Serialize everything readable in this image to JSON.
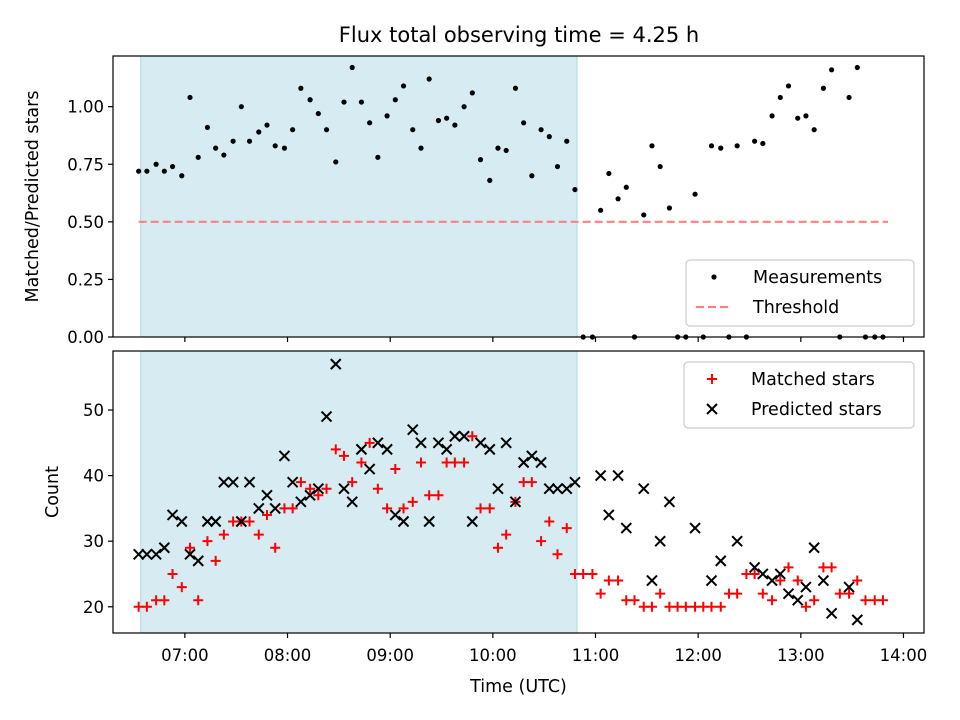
{
  "figure": {
    "title": "Flux total observing time = 4.25 h"
  },
  "colors": {
    "band": "#add8e6",
    "threshold": "#ff8080",
    "measurement": "#000000",
    "matched": "#ff0000",
    "predicted": "#000000"
  },
  "chart_data": [
    {
      "type": "scatter",
      "title": "Flux total observing time = 4.25 h",
      "xlabel": "",
      "ylabel": "Matched/Predicted stars",
      "xlim_hours": [
        6.3,
        14.2
      ],
      "ylim": [
        0.0,
        1.22
      ],
      "yticks": [
        "0.00",
        "0.25",
        "0.50",
        "0.75",
        "1.00"
      ],
      "ytick_values": [
        0.0,
        0.25,
        0.5,
        0.75,
        1.0
      ],
      "shaded_band_hours": [
        6.57,
        10.82
      ],
      "legend_placement": "lower-right",
      "grid": false,
      "series": [
        {
          "name": "Measurements",
          "marker": "dot",
          "x_hours": [
            6.55,
            6.63,
            6.72,
            6.8,
            6.88,
            6.97,
            7.05,
            7.13,
            7.22,
            7.3,
            7.38,
            7.47,
            7.55,
            7.63,
            7.72,
            7.8,
            7.88,
            7.97,
            8.05,
            8.13,
            8.22,
            8.3,
            8.38,
            8.47,
            8.55,
            8.63,
            8.72,
            8.8,
            8.88,
            8.97,
            9.05,
            9.13,
            9.22,
            9.3,
            9.38,
            9.47,
            9.55,
            9.63,
            9.72,
            9.8,
            9.88,
            9.97,
            10.05,
            10.13,
            10.22,
            10.3,
            10.38,
            10.47,
            10.55,
            10.63,
            10.72,
            10.8,
            10.88,
            10.97,
            11.05,
            11.13,
            11.22,
            11.3,
            11.38,
            11.47,
            11.55,
            11.63,
            11.72,
            11.8,
            11.88,
            11.97,
            12.05,
            12.13,
            12.22,
            12.3,
            12.38,
            12.47,
            12.55,
            12.63,
            12.72,
            12.8,
            12.88,
            12.97,
            13.05,
            13.13,
            13.22,
            13.3,
            13.38,
            13.47,
            13.55,
            13.63,
            13.72,
            13.8
          ],
          "y": [
            0.72,
            0.72,
            0.75,
            0.72,
            0.74,
            0.7,
            1.04,
            0.78,
            0.91,
            0.82,
            0.79,
            0.85,
            1.0,
            0.85,
            0.89,
            0.92,
            0.83,
            0.82,
            0.9,
            1.08,
            1.03,
            0.97,
            0.9,
            0.76,
            1.02,
            1.17,
            1.02,
            0.93,
            0.78,
            0.96,
            1.03,
            1.09,
            0.9,
            0.82,
            1.12,
            0.94,
            0.95,
            0.92,
            1.0,
            1.06,
            0.77,
            0.68,
            0.82,
            0.81,
            1.08,
            0.93,
            0.7,
            0.9,
            0.87,
            0.74,
            0.85,
            0.64,
            0.0,
            0.0,
            0.55,
            0.71,
            0.6,
            0.65,
            0.0,
            0.53,
            0.83,
            0.74,
            0.56,
            0.0,
            0.0,
            0.62,
            0.0,
            0.83,
            0.82,
            0.0,
            0.83,
            0.0,
            0.85,
            0.84,
            0.96,
            1.04,
            1.09,
            0.95,
            0.96,
            0.9,
            1.08,
            1.16,
            0.0,
            1.04,
            1.17,
            0.0,
            0.0,
            0.0
          ]
        },
        {
          "name": "Threshold",
          "style": "dashed",
          "x_hours": [
            6.55,
            13.85
          ],
          "y": [
            0.5,
            0.5
          ]
        }
      ]
    },
    {
      "type": "scatter",
      "xlabel": "Time (UTC)",
      "ylabel": "Count",
      "xlim_hours": [
        6.3,
        14.2
      ],
      "ylim": [
        16,
        59
      ],
      "yticks": [
        "20",
        "30",
        "40",
        "50"
      ],
      "ytick_values": [
        20,
        30,
        40,
        50
      ],
      "xticks": [
        "07:00",
        "08:00",
        "09:00",
        "10:00",
        "11:00",
        "12:00",
        "13:00",
        "14:00"
      ],
      "xtick_hours": [
        7,
        8,
        9,
        10,
        11,
        12,
        13,
        14
      ],
      "shaded_band_hours": [
        6.57,
        10.82
      ],
      "legend_placement": "top-right",
      "grid": false,
      "series": [
        {
          "name": "Matched stars",
          "marker": "plus",
          "x_hours": [
            6.55,
            6.63,
            6.72,
            6.8,
            6.88,
            6.97,
            7.05,
            7.13,
            7.22,
            7.3,
            7.38,
            7.47,
            7.55,
            7.63,
            7.72,
            7.8,
            7.88,
            7.97,
            8.05,
            8.13,
            8.22,
            8.3,
            8.38,
            8.47,
            8.55,
            8.63,
            8.72,
            8.8,
            8.88,
            8.97,
            9.05,
            9.13,
            9.22,
            9.3,
            9.38,
            9.47,
            9.55,
            9.63,
            9.72,
            9.8,
            9.88,
            9.97,
            10.05,
            10.13,
            10.22,
            10.3,
            10.38,
            10.47,
            10.55,
            10.63,
            10.72,
            10.8,
            10.88,
            10.97,
            11.05,
            11.13,
            11.22,
            11.3,
            11.38,
            11.47,
            11.55,
            11.63,
            11.72,
            11.8,
            11.88,
            11.97,
            12.05,
            12.13,
            12.22,
            12.3,
            12.38,
            12.47,
            12.55,
            12.63,
            12.72,
            12.8,
            12.88,
            12.97,
            13.05,
            13.13,
            13.22,
            13.3,
            13.38,
            13.47,
            13.55,
            13.63,
            13.72,
            13.8
          ],
          "y": [
            20,
            20,
            21,
            21,
            25,
            23,
            29,
            21,
            30,
            27,
            31,
            33,
            33,
            33,
            31,
            34,
            29,
            35,
            35,
            39,
            38,
            37,
            38,
            44,
            43,
            39,
            42,
            45,
            38,
            35,
            41,
            35,
            36,
            42,
            37,
            37,
            42,
            42,
            42,
            46,
            35,
            35,
            29,
            31,
            36,
            39,
            39,
            30,
            33,
            28,
            32,
            25,
            25,
            25,
            22,
            24,
            24,
            21,
            21,
            20,
            20,
            22,
            20,
            20,
            20,
            20,
            20,
            20,
            20,
            22,
            22,
            25,
            25,
            22,
            21,
            24,
            26,
            24,
            20,
            21,
            26,
            26,
            22,
            22,
            24,
            21,
            21,
            21
          ]
        },
        {
          "name": "Predicted stars",
          "marker": "x",
          "x_hours": [
            6.55,
            6.63,
            6.72,
            6.8,
            6.88,
            6.97,
            7.05,
            7.13,
            7.22,
            7.3,
            7.38,
            7.47,
            7.55,
            7.63,
            7.72,
            7.8,
            7.88,
            7.97,
            8.05,
            8.13,
            8.22,
            8.3,
            8.38,
            8.47,
            8.55,
            8.63,
            8.72,
            8.8,
            8.88,
            8.97,
            9.05,
            9.13,
            9.22,
            9.3,
            9.38,
            9.47,
            9.55,
            9.63,
            9.72,
            9.8,
            9.88,
            9.97,
            10.05,
            10.13,
            10.22,
            10.3,
            10.38,
            10.47,
            10.55,
            10.63,
            10.72,
            10.8,
            11.05,
            11.13,
            11.22,
            11.3,
            11.47,
            11.55,
            11.63,
            11.72,
            11.97,
            12.13,
            12.22,
            12.38,
            12.55,
            12.63,
            12.72,
            12.8,
            12.88,
            12.97,
            13.05,
            13.13,
            13.22,
            13.3,
            13.47,
            13.55
          ],
          "y": [
            28,
            28,
            28,
            29,
            34,
            33,
            28,
            27,
            33,
            33,
            39,
            39,
            33,
            39,
            35,
            37,
            35,
            43,
            39,
            36,
            37,
            38,
            49,
            57,
            38,
            36,
            44,
            41,
            45,
            44,
            34,
            33,
            47,
            45,
            33,
            45,
            44,
            46,
            46,
            33,
            45,
            44,
            38,
            45,
            36,
            42,
            43,
            42,
            38,
            38,
            38,
            39,
            40,
            34,
            40,
            32,
            38,
            24,
            30,
            36,
            32,
            24,
            27,
            30,
            26,
            25,
            24,
            25,
            22,
            21,
            23,
            29,
            24,
            19,
            23,
            18
          ]
        }
      ]
    }
  ]
}
